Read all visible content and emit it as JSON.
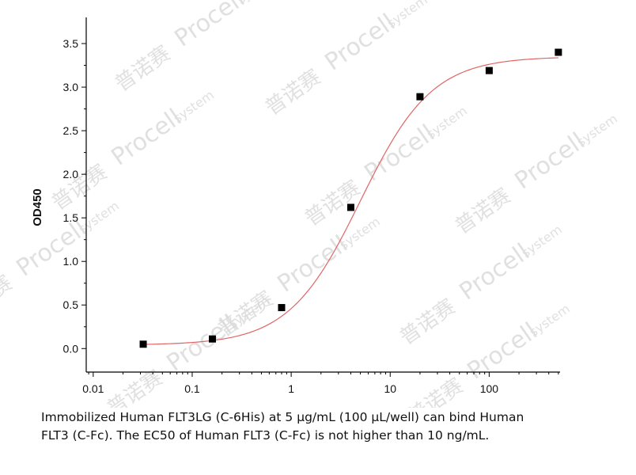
{
  "chart_data": {
    "type": "scatter",
    "xscale": "log",
    "xlim": [
      0.0085,
      520
    ],
    "ylim": [
      -0.27,
      3.8
    ],
    "xticks": [
      0.01,
      0.1,
      1,
      10,
      100
    ],
    "xtick_labels": [
      "0.01",
      "0.1",
      "1",
      "10",
      "100"
    ],
    "yticks": [
      0.0,
      0.5,
      1.0,
      1.5,
      2.0,
      2.5,
      3.0,
      3.5
    ],
    "ytick_labels": [
      "0.0",
      "0.5",
      "1.0",
      "1.5",
      "2.0",
      "2.5",
      "3.0",
      "3.5"
    ],
    "xlabel": "",
    "ylabel": "OD450",
    "grid": false,
    "points": [
      {
        "x": 0.032,
        "y": 0.05
      },
      {
        "x": 0.16,
        "y": 0.11
      },
      {
        "x": 0.8,
        "y": 0.47
      },
      {
        "x": 4,
        "y": 1.62
      },
      {
        "x": 20,
        "y": 2.89
      },
      {
        "x": 100,
        "y": 3.19
      },
      {
        "x": 500,
        "y": 3.4
      }
    ],
    "fit_curve": {
      "type": "4PL",
      "bottom": 0.04,
      "top": 3.35,
      "ec50": 5,
      "hill": 1.2,
      "color": "#e06666"
    },
    "marker_color": "#000000"
  },
  "caption": {
    "line1": "Immobilized Human FLT3LG (C-6His) at 5 μg/mL (100 μL/well) can bind Human",
    "line2": "FLT3 (C-Fc). The EC50 of Human FLT3 (C-Fc) is not higher than 10 ng/mL."
  },
  "watermark": {
    "brand": "Procell",
    "sub": "system",
    "cn": "普诺赛",
    "color": "#d9d9d9"
  }
}
